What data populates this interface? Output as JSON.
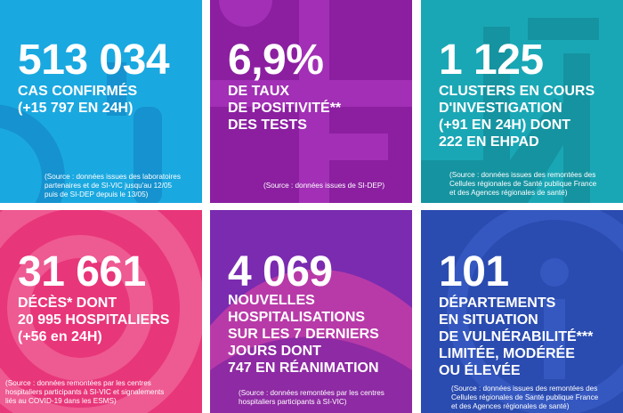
{
  "colors": {
    "tile1": "#1aa8e0",
    "tile2": "#8b1fa0",
    "tile3": "#1aa7b5",
    "tile4": "#e8367a",
    "tile5": "#7a2bb0",
    "tile6": "#2a4bb0"
  },
  "tiles": [
    {
      "value": "513 034",
      "lines": [
        "CAS CONFIRMÉS",
        "(+15 797 EN 24H)"
      ],
      "source": [
        "(Source : données issues des laboratoires",
        "partenaires et de SI-VIC jusqu'au 12/05",
        "puis de SI-DEP depuis le 13/05)"
      ]
    },
    {
      "value": "6,9%",
      "lines": [
        "DE TAUX",
        "DE POSITIVITÉ**",
        "DES TESTS"
      ],
      "source": [
        "(Source : données issues de SI-DEP)"
      ]
    },
    {
      "value": "1 125",
      "lines": [
        "CLUSTERS EN COURS",
        "D'INVESTIGATION",
        "(+91 EN 24H) DONT",
        "222 EN EHPAD"
      ],
      "source": [
        "(Source : données issues des remontées des",
        "Cellules régionales de Santé publique France",
        "et des Agences régionales de santé)"
      ]
    },
    {
      "value": "31 661",
      "lines": [
        "DÉCÈS* DONT",
        "20 995 HOSPITALIERS",
        "(+56 en 24H)"
      ],
      "source": [
        "(Source : données remontées par les centres",
        "hospitaliers participants à SI-VIC et signalements",
        "liés au COVID-19 dans les ESMS)"
      ]
    },
    {
      "value": "4 069",
      "lines": [
        "NOUVELLES",
        "HOSPITALISATIONS",
        "SUR LES 7 DERNIERS",
        "JOURS DONT",
        "747 EN RÉANIMATION"
      ],
      "source": [
        "(Source : données remontées par les centres",
        "hospitaliers participants à SI-VIC)"
      ]
    },
    {
      "value": "101",
      "lines": [
        "DÉPARTEMENTS",
        "EN SITUATION",
        "DE VULNÉRABILITÉ***",
        "LIMITÉE, MODÉRÉE",
        "OU ÉLEVÉE"
      ],
      "source": [
        "(Source : données issues des remontées des",
        "Cellules régionales de Santé publique France",
        "et des Agences régionales de santé)"
      ]
    }
  ]
}
